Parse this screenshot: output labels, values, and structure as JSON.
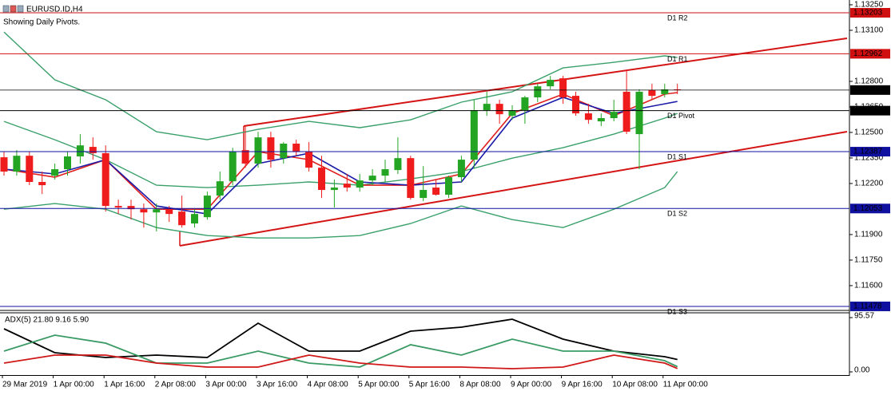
{
  "chart_data": [
    {
      "type": "candlestick",
      "title": "EURUSD.ID,H4",
      "subtitle": "Showing Daily Pivots.",
      "categories": [
        "29 Mar 2019",
        null,
        null,
        null,
        "1 Apr 00:00",
        null,
        null,
        null,
        "1 Apr 16:00",
        null,
        null,
        null,
        "2 Apr 08:00",
        null,
        null,
        null,
        "3 Apr 00:00",
        null,
        null,
        null,
        "3 Apr 16:00",
        null,
        null,
        null,
        "4 Apr 08:00",
        null,
        null,
        null,
        "5 Apr 00:00",
        null,
        null,
        null,
        "5 Apr 16:00",
        null,
        null,
        null,
        "8 Apr 08:00",
        null,
        null,
        null,
        "9 Apr 00:00",
        null,
        null,
        null,
        "9 Apr 16:00",
        null,
        null,
        null,
        "10 Apr 08:00",
        null,
        null,
        null,
        "11 Apr 00:00",
        null
      ],
      "open": [
        1.12354,
        1.1227,
        1.12363,
        1.12209,
        1.12246,
        1.12284,
        1.12359,
        1.12415,
        1.12378,
        1.12068,
        1.12068,
        1.12049,
        1.1203,
        1.12049,
        1.12035,
        1.11965,
        1.12002,
        1.12129,
        1.12213,
        1.12396,
        1.12317,
        1.12471,
        1.12349,
        1.12434,
        1.12387,
        1.12293,
        1.12162,
        1.12199,
        1.12176,
        1.12218,
        1.12246,
        1.12279,
        1.12349,
        1.12115,
        1.12176,
        1.12134,
        1.12237,
        1.1234,
        1.12631,
        1.12668,
        1.12598,
        1.12631,
        1.12706,
        1.12771,
        1.12818,
        1.12715,
        1.12612,
        1.12565,
        1.12584,
        1.12739,
        1.1249,
        1.12748,
        1.12725,
        1.12753
      ],
      "high": [
        1.12387,
        1.12396,
        1.12387,
        1.1227,
        1.12317,
        1.12387,
        1.1249,
        1.12471,
        1.12424,
        1.12105,
        1.12105,
        1.12082,
        1.12082,
        1.12068,
        1.12129,
        1.12049,
        1.12152,
        1.1227,
        1.1241,
        1.12537,
        1.12504,
        1.12504,
        1.12443,
        1.12457,
        1.12443,
        1.12363,
        1.12223,
        1.12256,
        1.12256,
        1.12284,
        1.1234,
        1.12471,
        1.12363,
        1.12302,
        1.12223,
        1.12246,
        1.12363,
        1.12692,
        1.12739,
        1.12692,
        1.12659,
        1.12715,
        1.12786,
        1.12832,
        1.12832,
        1.12739,
        1.12668,
        1.12612,
        1.12692,
        1.12865,
        1.12753,
        1.12786,
        1.12786,
        1.12786
      ],
      "low": [
        1.12246,
        1.12246,
        1.1219,
        1.12138,
        1.12223,
        1.12246,
        1.12317,
        1.1234,
        1.12035,
        1.12021,
        1.11988,
        1.11941,
        1.11918,
        1.11974,
        1.11941,
        1.11941,
        1.11988,
        1.12105,
        1.1219,
        1.12293,
        1.12293,
        1.12293,
        1.12317,
        1.12363,
        1.1227,
        1.12115,
        1.12059,
        1.12152,
        1.12152,
        1.1219,
        1.12209,
        1.12256,
        1.12105,
        1.12096,
        1.12129,
        1.12115,
        1.12209,
        1.12293,
        1.12598,
        1.12551,
        1.12574,
        1.12551,
        1.12678,
        1.12753,
        1.12668,
        1.12598,
        1.12551,
        1.12537,
        1.12565,
        1.1249,
        1.12284,
        1.12692,
        1.12706,
        1.12725
      ],
      "close": [
        1.1227,
        1.12363,
        1.12209,
        1.1219,
        1.12284,
        1.12359,
        1.12424,
        1.12378,
        1.12068,
        1.12059,
        1.12049,
        1.1203,
        1.12049,
        1.12021,
        1.11955,
        1.12021,
        1.12129,
        1.12213,
        1.12387,
        1.12317,
        1.12471,
        1.1234,
        1.12434,
        1.12387,
        1.12293,
        1.12162,
        1.12176,
        1.12176,
        1.12218,
        1.12246,
        1.12284,
        1.12349,
        1.12115,
        1.12162,
        1.12134,
        1.12237,
        1.1234,
        1.12631,
        1.12668,
        1.12607,
        1.12631,
        1.12706,
        1.12771,
        1.12809,
        1.12706,
        1.12612,
        1.12574,
        1.12584,
        1.12621,
        1.12504,
        1.12739,
        1.12715,
        1.12753,
        1.12749
      ],
      "up_color": "#23a523",
      "down_color": "#ee1c1c",
      "x": [
        0,
        4,
        8,
        12,
        16,
        20,
        24,
        28,
        32,
        36,
        40,
        44,
        48,
        52,
        53
      ],
      "series": [
        {
          "color": "#3aa06a",
          "values": [
            1.1309,
            1.12809,
            1.12692,
            1.12504,
            1.12457,
            1.12518,
            1.12565,
            1.12528,
            1.12574,
            1.12678,
            1.12739,
            1.12879,
            1.12912,
            1.1295,
            1.1294
          ]
        },
        {
          "color": "#3aa06a",
          "values": [
            1.12565,
            1.12457,
            1.1234,
            1.1219,
            1.12176,
            1.1219,
            1.12209,
            1.1219,
            1.12227,
            1.1227,
            1.12349,
            1.1241,
            1.1249,
            1.12584,
            1.12612
          ]
        },
        {
          "color": "#3aa06a",
          "values": [
            1.12049,
            1.12082,
            1.12049,
            1.11941,
            1.11894,
            1.1188,
            1.1188,
            1.11894,
            1.11965,
            1.12068,
            1.11988,
            1.11941,
            1.12049,
            1.12176,
            1.1227
          ]
        },
        {
          "color": "#e01e1e",
          "values": [
            1.12284,
            1.12237,
            1.1234,
            1.12049,
            1.12049,
            1.12387,
            1.1234,
            1.1219,
            1.1219,
            1.12256,
            1.12612,
            1.12725,
            1.12598,
            1.12725,
            1.12734
          ]
        },
        {
          "color": "#1a1aa8",
          "values": [
            1.12284,
            1.12256,
            1.1234,
            1.12068,
            1.12021,
            1.12317,
            1.12378,
            1.12209,
            1.1219,
            1.12209,
            1.12584,
            1.12706,
            1.12612,
            1.12668,
            1.12682
          ]
        }
      ],
      "pivots": [
        {
          "label": "D1 R2",
          "value": 1.13203,
          "color": "#d01010"
        },
        {
          "label": "D1 R1",
          "value": 1.12962,
          "color": "#d01010"
        },
        {
          "label": "D1 Pivot",
          "value": 1.12628,
          "color": "#000000"
        },
        {
          "label": "D1 S1",
          "value": 1.12387,
          "color": "#1010a0"
        },
        {
          "label": "D1 S2",
          "value": 1.12053,
          "color": "#1010a0"
        },
        {
          "label": "D1 S3",
          "value": 1.11478,
          "color": "#1010a0"
        }
      ],
      "last_price": 1.12749,
      "ylim": [
        1.11459,
        1.13278
      ],
      "yticks": [
        {
          "value": 1.1325,
          "label": "1.13250"
        },
        {
          "value": 1.131,
          "label": "1.13100"
        },
        {
          "value": 1.128,
          "label": "1.12800"
        },
        {
          "value": 1.1265,
          "label": "1.12650"
        },
        {
          "value": 1.125,
          "label": "1.12500"
        },
        {
          "value": 1.1235,
          "label": "1.12350"
        },
        {
          "value": 1.122,
          "label": "1.12200"
        },
        {
          "value": 1.119,
          "label": "1.11900"
        },
        {
          "value": 1.1175,
          "label": "1.11750"
        },
        {
          "value": 1.116,
          "label": "1.11600"
        }
      ]
    },
    {
      "type": "line",
      "title": "ADX(5) 21.80 9.16 5.90",
      "x": [
        0,
        4,
        8,
        12,
        16,
        20,
        24,
        28,
        32,
        36,
        40,
        44,
        48,
        52,
        53
      ],
      "series": [
        {
          "color": "#000000",
          "values": [
            75.9,
            33.7,
            25.3,
            29.5,
            25.3,
            85.7,
            36.5,
            36.5,
            71.7,
            78.7,
            92.7,
            57.6,
            36.5,
            26.7,
            21.8
          ]
        },
        {
          "color": "#3a9a64",
          "values": [
            36.5,
            64.6,
            50.6,
            15.5,
            15.5,
            36.5,
            15.5,
            8.4,
            47.8,
            29.5,
            57.6,
            36.5,
            36.5,
            19.7,
            9.16
          ]
        },
        {
          "color": "#d01818",
          "values": [
            15.5,
            29.5,
            29.5,
            15.5,
            8.4,
            8.4,
            29.5,
            15.5,
            8.4,
            8.4,
            5.6,
            8.4,
            29.5,
            15.5,
            5.9
          ]
        }
      ],
      "ylim": [
        0,
        104
      ],
      "yticks": [
        95.57,
        {
          "value": 0,
          "label": "0.00"
        }
      ]
    }
  ]
}
